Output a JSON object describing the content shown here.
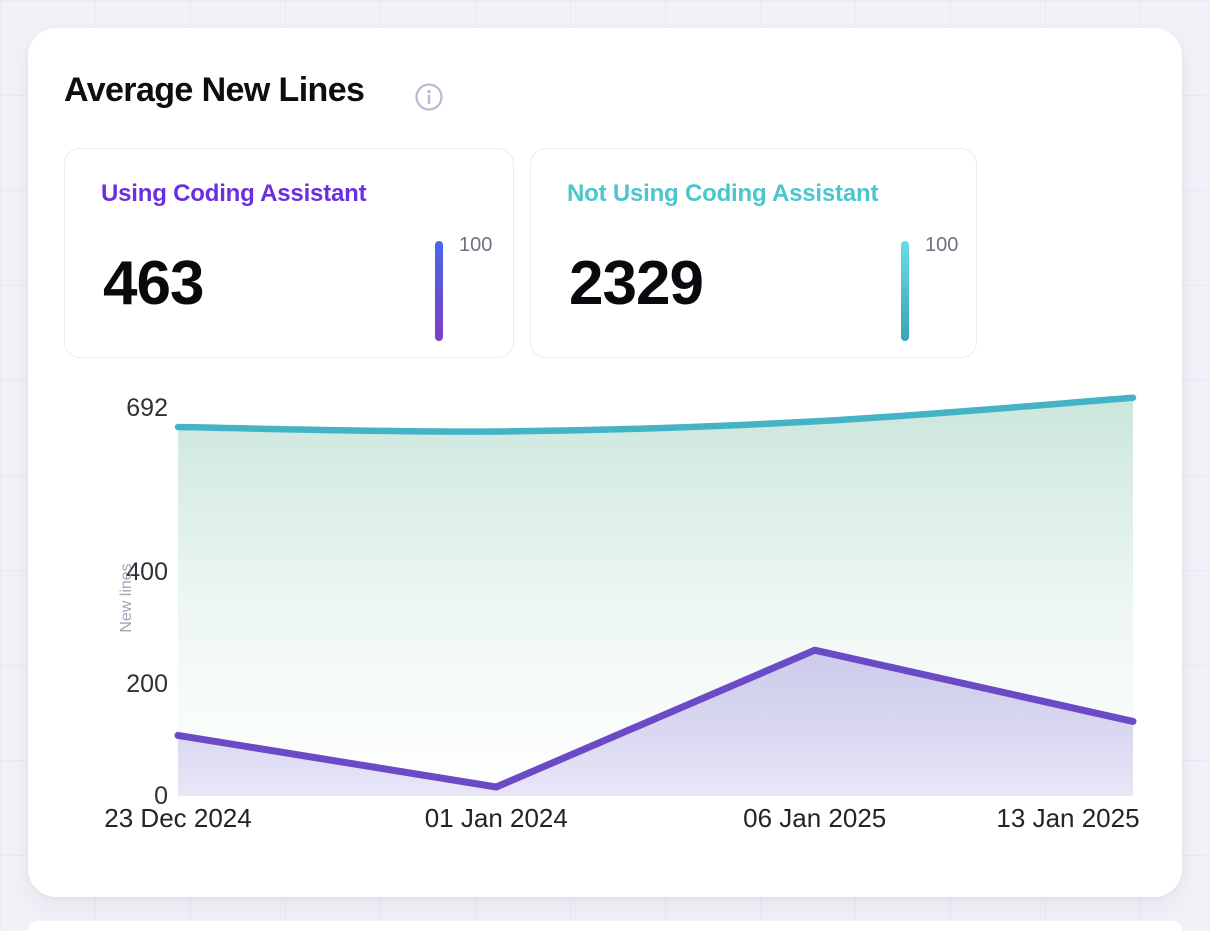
{
  "header": {
    "title": "Average New Lines"
  },
  "stats": [
    {
      "label": "Using Coding Assistant",
      "value": "463",
      "gauge_label": "100",
      "color": "#6c2fe0",
      "bar_top": "#4767e8",
      "bar_bottom": "#7d3fc3"
    },
    {
      "label": "Not Using Coding Assistant",
      "value": "2329",
      "gauge_label": "100",
      "color": "#4bc6cc",
      "bar_top": "#68dee6",
      "bar_bottom": "#3aa2b6"
    }
  ],
  "chart_data": {
    "type": "area",
    "categories": [
      "23 Dec 2024",
      "01 Jan 2024",
      "06 Jan 2025",
      "13 Jan 2025"
    ],
    "series": [
      {
        "name": "Not Using Coding Assistant",
        "values": [
          658,
          650,
          668,
          710
        ],
        "color": "#44b3c5",
        "stroke_width": 6.5,
        "smooth": true,
        "fill_top": "rgba(94,179,148,0.32)",
        "fill_mid": "rgba(94,179,148,0.10)",
        "fill_bottom": "rgba(94,179,148,0)"
      },
      {
        "name": "Using Coding Assistant",
        "values": [
          108,
          16,
          260,
          133
        ],
        "color": "#6b4ac6",
        "stroke_width": 7,
        "smooth": false,
        "fill_top": "rgba(106,86,205,0.28)",
        "fill_mid": "rgba(106,86,205,0.22)",
        "fill_bottom": "rgba(106,86,205,0.15)"
      }
    ],
    "title": "Average New Lines",
    "xlabel": "",
    "ylabel": "New lines",
    "yticks": [
      0,
      200,
      400,
      692
    ],
    "ylim": [
      0,
      715
    ],
    "grid": false,
    "legend": "none"
  }
}
